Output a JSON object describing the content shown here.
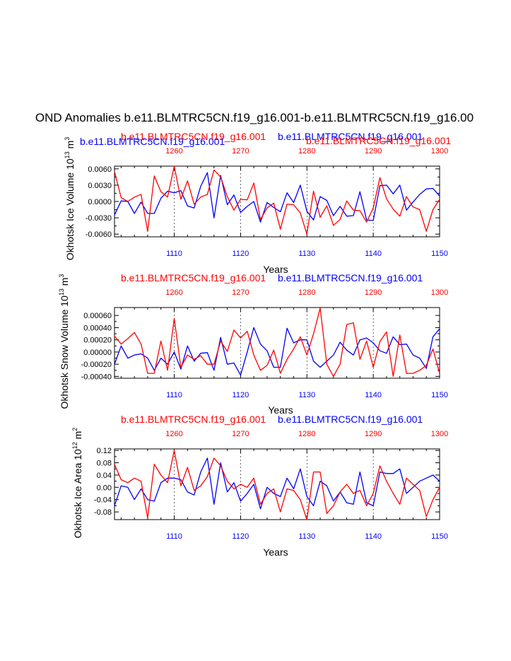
{
  "figure": {
    "title": "OND Anomalies b.e11.BLMTRC5CN.f19_g16.001-b.e11.BLMTRC5CN.f19_g16.00",
    "colors": {
      "blue_series": "#0000ff",
      "red_series": "#ff0000",
      "axis": "#000000"
    }
  },
  "chart_data": [
    {
      "type": "line",
      "id": "ice-volume",
      "ylabel": "Okhotsk Ice Volume 10",
      "ylabel_exp": "13",
      "ylabel_unit": "m",
      "ylabel_unit_exp": "3",
      "xlabel": "Years",
      "header_labels": [
        {
          "text": "b.e11.BLMTRC5CN.f19_g16.001",
          "color": "#ff0000"
        },
        {
          "text": "b.e11.BLMTRC5CN.f19_g16.001",
          "color": "#0000ff"
        },
        {
          "text": "b.e11.BLMTRC5CN.f19_g16.001",
          "color": "#0000ff"
        },
        {
          "text": "b.e11.BLMTRC5CN.f19_g16.001",
          "color": "#ff0000"
        }
      ],
      "ylim": [
        -0.0065,
        0.0065
      ],
      "yticks": [
        -0.006,
        -0.003,
        0.0,
        0.003,
        0.006
      ],
      "ytick_labels": [
        "-0.0060",
        "-0.0030",
        "0.0000",
        "0.0030",
        "0.0060"
      ],
      "xlim_bottom": [
        1101,
        1150
      ],
      "xticks_bottom": [
        "1110",
        "1120",
        "1130",
        "1140",
        "1150"
      ],
      "xticks_top": [
        "1260",
        "1270",
        "1280",
        "1290",
        "1300"
      ],
      "series": [
        {
          "name": "b.e11.BLMTRC5CN.f19_g16.001 (years 1101-1150)",
          "color": "#0000ff",
          "values": [
            -0.0025,
            0.0001,
            0.0,
            -0.0022,
            -0.0001,
            -0.0022,
            -0.0022,
            0.0006,
            0.0019,
            0.0016,
            0.002,
            -0.0008,
            -0.0012,
            0.0028,
            0.0053,
            -0.003,
            0.0048,
            -0.0006,
            0.0012,
            -0.002,
            -0.0009,
            0.0,
            -0.0038,
            -0.0002,
            -0.0011,
            -0.0019,
            0.0016,
            -0.0002,
            0.003,
            -0.0018,
            -0.0034,
            0.0009,
            0.0002,
            -0.0026,
            -0.0009,
            -0.0027,
            -0.0026,
            0.0018,
            -0.0034,
            -0.0035,
            0.0029,
            0.003,
            0.0014,
            0.003,
            -0.0016,
            -0.0001,
            0.0013,
            0.0023,
            0.0024,
            0.001
          ]
        },
        {
          "name": "b.e11.BLMTRC5CN.f19_g16.001 (years 1251-1300)",
          "color": "#ff0000",
          "values": [
            0.0055,
            0.0007,
            0.0,
            0.0008,
            0.0013,
            -0.0055,
            0.0047,
            0.0018,
            0.0008,
            0.0065,
            0.0004,
            0.0038,
            -0.0005,
            0.0008,
            0.0013,
            0.0058,
            0.0045,
            0.0009,
            -0.0016,
            0.0004,
            0.0003,
            0.0034,
            -0.0033,
            -0.0012,
            -0.0003,
            -0.0051,
            -0.0005,
            -0.0006,
            -0.0021,
            -0.006,
            0.0019,
            -0.0029,
            -0.0008,
            -0.0044,
            -0.0033,
            0.0001,
            -0.0016,
            -0.0017,
            -0.0038,
            -0.0012,
            0.0044,
            0.0005,
            -0.0014,
            -0.0027,
            0.0009,
            -0.001,
            -0.0015,
            -0.0055,
            -0.0015,
            0.0004
          ]
        }
      ]
    },
    {
      "type": "line",
      "id": "snow-volume",
      "ylabel": "Okhotsk Snow Volume 10",
      "ylabel_exp": "13",
      "ylabel_unit": "m",
      "ylabel_unit_exp": "3",
      "xlabel": "Years",
      "header_labels": [
        {
          "text": "b.e11.BLMTRC5CN.f19_g16.001",
          "color": "#ff0000"
        },
        {
          "text": "b.e11.BLMTRC5CN.f19_g16.001",
          "color": "#0000ff"
        }
      ],
      "ylim": [
        -0.00043,
        0.00073
      ],
      "yticks": [
        -0.0004,
        -0.0002,
        0.0,
        0.0002,
        0.0004,
        0.0006
      ],
      "ytick_labels": [
        "-0.00040",
        "-0.00020",
        "0.00000",
        "0.00020",
        "0.00040",
        "0.00060"
      ],
      "xlim_bottom": [
        1101,
        1150
      ],
      "xticks_bottom": [
        "1110",
        "1120",
        "1130",
        "1140",
        "1150"
      ],
      "xticks_top": [
        "1260",
        "1270",
        "1280",
        "1290",
        "1300"
      ],
      "series": [
        {
          "name": "b.e11.BLMTRC5CN.f19_g16.001 (years 1101-1150)",
          "color": "#0000ff",
          "values": [
            -0.0002,
            0.0001,
            -0.0001,
            -5e-05,
            -3e-05,
            -0.0001,
            -0.0003,
            -0.0001,
            -0.0002,
            0.0,
            -0.00028,
            0.0001,
            -0.00015,
            -2e-05,
            -1e-05,
            -0.0003,
            0.00024,
            -0.0002,
            -0.00018,
            -0.00038,
            0.0,
            0.0004,
            0.00013,
            2e-05,
            -0.00025,
            -0.00025,
            0.00039,
            0.00015,
            0.0002,
            0.0002,
            -0.00015,
            -0.00025,
            -0.00015,
            -5e-05,
            0.00016,
            3e-05,
            -5e-05,
            0.0002,
            0.00023,
            0.00015,
            2e-05,
            -2e-05,
            0.00025,
            0.00012,
            0.00013,
            -5e-05,
            -0.0001,
            -0.00027,
            0.00025,
            0.00038
          ]
        },
        {
          "name": "b.e11.BLMTRC5CN.f19_g16.001 (years 1251-1300)",
          "color": "#ff0000",
          "values": [
            0.00026,
            0.00013,
            0.00022,
            0.00032,
            0.00013,
            -0.00035,
            -0.00035,
            0.00018,
            -0.0003,
            0.00055,
            -0.00025,
            -5e-05,
            -0.00012,
            -6e-05,
            -0.0002,
            -0.0002,
            0.00018,
            1e-05,
            0.00036,
            0.00023,
            0.00034,
            -5e-05,
            -0.0003,
            -0.00022,
            3e-05,
            -0.00035,
            -0.00012,
            5e-05,
            0.00025,
            -5e-05,
            0.0003,
            0.00072,
            -0.0002,
            -0.0004,
            -0.0002,
            0.00045,
            0.00048,
            -0.00012,
            0.00018,
            -0.00025,
            0.00017,
            0.00033,
            -0.0004,
            0.00028,
            -0.00035,
            -0.00035,
            -0.0003,
            -0.00022,
            5e-05,
            -0.00035
          ]
        }
      ]
    },
    {
      "type": "line",
      "id": "ice-area",
      "ylabel": "Okhotsk Ice Area 10",
      "ylabel_exp": "12",
      "ylabel_unit": "m",
      "ylabel_unit_exp": "2",
      "xlabel": "Years",
      "header_labels": [
        {
          "text": "b.e11.BLMTRC5CN.f19_g16.001",
          "color": "#ff0000"
        },
        {
          "text": "b.e11.BLMTRC5CN.f19_g16.001",
          "color": "#0000ff"
        }
      ],
      "ylim": [
        -0.105,
        0.125
      ],
      "yticks": [
        -0.08,
        -0.04,
        0.0,
        0.04,
        0.08,
        0.12
      ],
      "ytick_labels": [
        "-0.08",
        "-0.04",
        "0.00",
        "0.04",
        "0.08",
        "0.12"
      ],
      "xlim_bottom": [
        1101,
        1150
      ],
      "xticks_bottom": [
        "1110",
        "1120",
        "1130",
        "1140",
        "1150"
      ],
      "xticks_top": [
        "1260",
        "1270",
        "1280",
        "1290",
        "1300"
      ],
      "series": [
        {
          "name": "b.e11.BLMTRC5CN.f19_g16.001 (years 1101-1150)",
          "color": "#0000ff",
          "values": [
            -0.06,
            0.005,
            0.0,
            -0.04,
            -0.005,
            -0.04,
            -0.045,
            0.015,
            0.03,
            0.03,
            0.025,
            -0.015,
            -0.025,
            0.05,
            0.095,
            -0.055,
            0.08,
            -0.015,
            0.015,
            -0.045,
            -0.02,
            0.01,
            -0.07,
            0.0,
            -0.02,
            -0.03,
            0.03,
            -0.005,
            0.06,
            -0.03,
            -0.06,
            0.02,
            0.005,
            -0.045,
            -0.015,
            -0.05,
            -0.055,
            0.05,
            -0.05,
            -0.06,
            0.05,
            0.045,
            0.045,
            0.06,
            -0.02,
            0.0,
            0.02,
            0.03,
            0.04,
            0.02
          ]
        },
        {
          "name": "b.e11.BLMTRC5CN.f19_g16.001 (years 1251-1300)",
          "color": "#ff0000",
          "values": [
            0.075,
            0.025,
            0.015,
            0.03,
            0.02,
            -0.1,
            0.075,
            0.04,
            0.015,
            0.12,
            0.005,
            0.065,
            -0.01,
            0.005,
            0.035,
            0.095,
            0.07,
            0.02,
            -0.005,
            0.01,
            0.0,
            0.03,
            -0.055,
            -0.02,
            -0.005,
            -0.08,
            -0.005,
            -0.01,
            -0.04,
            -0.105,
            0.05,
            0.05,
            -0.085,
            -0.06,
            -0.015,
            0.01,
            -0.02,
            -0.01,
            -0.06,
            -0.02,
            0.07,
            0.02,
            -0.02,
            -0.055,
            0.03,
            0.01,
            -0.01,
            -0.095,
            -0.04,
            0.0
          ]
        }
      ]
    }
  ]
}
